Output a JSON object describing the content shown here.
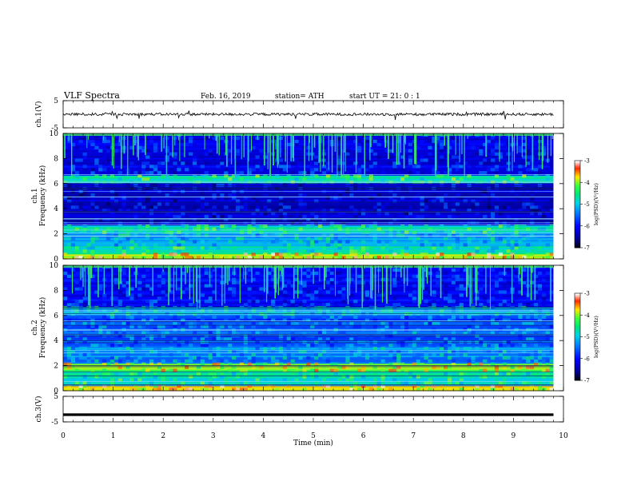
{
  "header": {
    "title": "VLF  Spectra",
    "date": "Feb. 16, 2019",
    "station": "station= ATH",
    "start": "start  UT  =   21: 0   : 1"
  },
  "chart_data": [
    {
      "type": "line",
      "name": "ch1-voltage",
      "ylabel": "ch.1(V)",
      "ylim": [
        -5,
        5
      ],
      "yticks": [
        "5",
        "-5"
      ],
      "xlim": [
        0,
        10
      ],
      "x_end": 9.8,
      "level": 0,
      "grid": false
    },
    {
      "type": "heatmap",
      "name": "ch1-spectrogram",
      "ylabel": "ch.1\nFrequency  (kHz)",
      "ylim": [
        0,
        10
      ],
      "yticks": [
        "0",
        "2",
        "4",
        "6",
        "8",
        "10"
      ],
      "xlim": [
        0,
        10
      ],
      "x_end": 9.8,
      "colorbar": {
        "label": "log(PSD)(V²/Hz)",
        "range": [
          -7,
          -3
        ],
        "ticks": [
          "-3",
          "-4",
          "-5",
          "-6",
          "-7"
        ]
      }
    },
    {
      "type": "heatmap",
      "name": "ch2-spectrogram",
      "ylabel": "ch.2\nFrequency  (kHz)",
      "ylim": [
        0,
        10
      ],
      "yticks": [
        "0",
        "2",
        "4",
        "6",
        "8",
        "10"
      ],
      "xlim": [
        0,
        10
      ],
      "x_end": 9.8,
      "colorbar": {
        "label": "log(PSD)(V²/Hz)",
        "range": [
          -7,
          -3
        ],
        "ticks": [
          "-3",
          "-4",
          "-5",
          "-6",
          "-7"
        ]
      }
    },
    {
      "type": "line",
      "name": "ch3-voltage",
      "ylabel": "ch.3(V)",
      "ylim": [
        -5,
        5
      ],
      "yticks": [
        "5",
        "-5"
      ],
      "xlim": [
        0,
        10
      ],
      "x_end": 9.8,
      "level": -2.2,
      "xlabel": "Time  (min)",
      "xticks": [
        "0",
        "1",
        "2",
        "3",
        "4",
        "5",
        "6",
        "7",
        "8",
        "9",
        "10"
      ],
      "grid": false
    }
  ]
}
